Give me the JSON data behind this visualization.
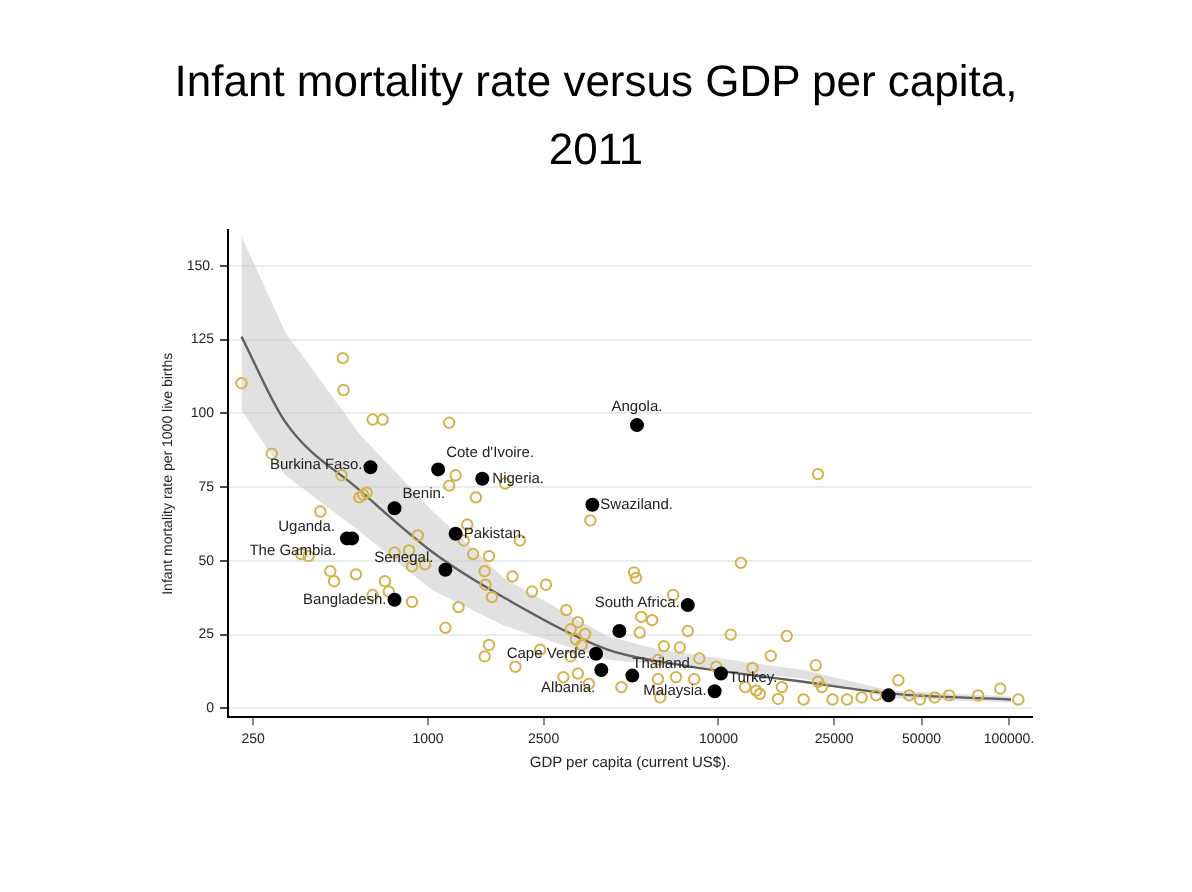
{
  "chart_data": {
    "type": "scatter",
    "title": "Infant mortality rate versus GDP per capita, 2011",
    "xlabel": "GDP per capita (current US$).",
    "ylabel": "Infant mortality rate per 1000 live births",
    "log": "x",
    "grid": "y",
    "legend": false,
    "marker": "circle",
    "xlim": [
      205,
      120000
    ],
    "ylim": [
      -3,
      162
    ],
    "xticks": [
      250,
      1000,
      2500,
      10000,
      25000,
      50000,
      {
        "value": 100000,
        "label": "100000."
      }
    ],
    "yticks": [
      0,
      25,
      50,
      75,
      100,
      125,
      {
        "value": 150,
        "label": "150."
      }
    ],
    "series": [
      {
        "type": "line",
        "color": "#606060",
        "marker": "none",
        "x": [
          228,
          323,
          581,
          1035,
          1832,
          4130,
          6150,
          19600,
          39300,
          101600
        ],
        "values": [
          126,
          97,
          74,
          53,
          37.5,
          20,
          16,
          9,
          5,
          3
        ],
        "lower": [
          101,
          79,
          60,
          40,
          28,
          16.5,
          15,
          10,
          3.5,
          2
        ],
        "upper": [
          160,
          127.5,
          93,
          67,
          44,
          24.5,
          20,
          13,
          6,
          4
        ]
      },
      {
        "color": "#d4b44a",
        "x": [
          228,
          509,
          512,
          290,
          645,
          698,
          1183,
          504,
          598,
          615,
          581,
          426,
          388,
          366,
          461,
          475,
          565,
          645,
          711,
          733,
          881,
          767,
          861,
          881,
          923,
          977,
          1148,
          1274,
          1183,
          1245,
          1462,
          1841,
          1365,
          1327,
          1430,
          1622,
          1567,
          1660,
          1578,
          2070,
          1954,
          2280,
          2547,
          1622,
          1567,
          2000,
          2432,
          2992,
          3281,
          3097,
          3475,
          3228,
          3380,
          3097,
          3622,
          2924,
          3281,
          3580,
          22000,
          11940,
          5120,
          5200,
          6980,
          5420,
          5910,
          5360,
          7840,
          11020,
          17180,
          6490,
          7360,
          15140,
          8590,
          6190,
          21620,
          9820,
          13090,
          7140,
          8250,
          6190,
          12350,
          13490,
          13870,
          16520,
          22000,
          22690,
          19630,
          24700,
          27700,
          31100,
          34900,
          41600,
          45300,
          49400,
          55500,
          62200,
          78300,
          93300,
          107700,
          4630,
          6300,
          16030
        ],
        "values": [
          110.2,
          118.7,
          107.9,
          86.3,
          97.9,
          97.9,
          96.8,
          79,
          72.4,
          73.1,
          71.5,
          66.7,
          51.6,
          52.3,
          46.5,
          43.1,
          45.4,
          38.4,
          43.1,
          39.6,
          36.1,
          52.8,
          53.5,
          48.1,
          58.6,
          48.8,
          27.3,
          34.3,
          75.5,
          79,
          71.5,
          76.2,
          62.3,
          56.9,
          52.3,
          51.6,
          46.5,
          37.7,
          41.9,
          56.9,
          44.7,
          39.6,
          41.9,
          21.5,
          17.6,
          14.1,
          19.9,
          33.3,
          29.2,
          26.8,
          25.2,
          23.4,
          21.5,
          17.6,
          63.7,
          10.6,
          11.8,
          8.3,
          79.4,
          49.3,
          46.1,
          44.2,
          38.4,
          31,
          29.9,
          25.7,
          26.2,
          25,
          24.5,
          21.1,
          20.6,
          17.8,
          16.9,
          16.4,
          14.6,
          14.1,
          13.7,
          10.6,
          9.9,
          9.9,
          7.2,
          6,
          4.9,
          7.2,
          9,
          7.2,
          3,
          3,
          3,
          3.7,
          4.4,
          9.5,
          4.4,
          3,
          3.7,
          4.4,
          4.4,
          6.7,
          3,
          7.2,
          3.7,
          3.2
        ]
      },
      {
        "color": "#000000",
        "x": [
          634,
          1084,
          1538,
          767,
          526,
          548,
          1245,
          1148,
          767,
          3680,
          5240,
          7840,
          4560,
          3790,
          3950,
          5050,
          10200,
          9700,
          38500
        ],
        "values": [
          81.7,
          81,
          77.8,
          67.8,
          57.6,
          57.6,
          59.2,
          47,
          36.8,
          69,
          96,
          35,
          26.2,
          18.5,
          13,
          11.1,
          11.8,
          5.8,
          4.4
        ]
      }
    ],
    "annotations": [
      {
        "text": "Burkina Faso.",
        "x": 634,
        "y": 81.7
      },
      {
        "text": "Cote d'Ivoire.",
        "x": 1084,
        "y": 81
      },
      {
        "text": "Nigeria.",
        "x": 1538,
        "y": 77.8
      },
      {
        "text": "Benin.",
        "x": 767,
        "y": 67.8
      },
      {
        "text": "Uganda.",
        "x": 526,
        "y": 57.6
      },
      {
        "text": "The Gambia.",
        "x": 548,
        "y": 57.6
      },
      {
        "text": "Pakistan.",
        "x": 1245,
        "y": 59.2
      },
      {
        "text": "Senegal.",
        "x": 1148,
        "y": 47
      },
      {
        "text": "Bangladesh.",
        "x": 767,
        "y": 36.8
      },
      {
        "text": "Swaziland.",
        "x": 3680,
        "y": 69
      },
      {
        "text": "Angola.",
        "x": 5240,
        "y": 96
      },
      {
        "text": "South Africa.",
        "x": 7840,
        "y": 35
      },
      {
        "text": "Cape Verde.",
        "x": 3790,
        "y": 18.5
      },
      {
        "text": "Albania.",
        "x": 3950,
        "y": 13
      },
      {
        "text": "Thailand.",
        "x": 5050,
        "y": 11.1
      },
      {
        "text": "Turkey.",
        "x": 10200,
        "y": 11.8
      },
      {
        "text": "Malaysia.",
        "x": 9700,
        "y": 5.8
      }
    ]
  }
}
